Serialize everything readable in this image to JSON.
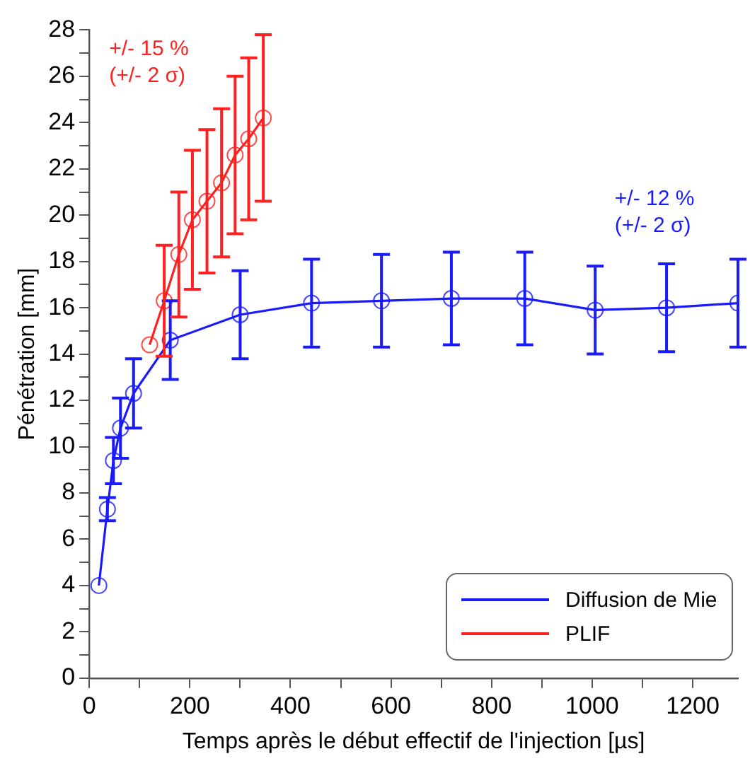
{
  "chart_data": {
    "type": "line",
    "xlabel": "Temps après le début effectif de l'injection [µs]",
    "ylabel": "Pénétration [mm]",
    "xlim": [
      0,
      1290
    ],
    "xticks": [
      0,
      {
        "value": 100,
        "label": null
      },
      200,
      {
        "value": 300,
        "label": null
      },
      400,
      {
        "value": 500,
        "label": null
      },
      600,
      {
        "value": 700,
        "label": null
      },
      800,
      {
        "value": 900,
        "label": null
      },
      1000,
      {
        "value": 1100,
        "label": null
      },
      1200
    ],
    "ylim": [
      0,
      28
    ],
    "yticks": [
      0,
      {
        "value": 1,
        "label": null
      },
      2,
      {
        "value": 3,
        "label": null
      },
      4,
      {
        "value": 5,
        "label": null
      },
      6,
      {
        "value": 7,
        "label": null
      },
      8,
      {
        "value": 9,
        "label": null
      },
      10,
      {
        "value": 11,
        "label": null
      },
      12,
      {
        "value": 13,
        "label": null
      },
      14,
      {
        "value": 15,
        "label": null
      },
      16,
      {
        "value": 17,
        "label": null
      },
      18,
      {
        "value": 19,
        "label": null
      },
      20,
      {
        "value": 21,
        "label": null
      },
      22,
      {
        "value": 23,
        "label": null
      },
      24,
      {
        "value": 25,
        "label": null
      },
      26,
      {
        "value": 27,
        "label": null
      },
      28
    ],
    "grid": false,
    "legend": "bottom right",
    "marker": "circle",
    "line_style": "solid",
    "series": [
      {
        "name": "Diffusion de Mie",
        "color": "#1a1aff",
        "x": [
          19,
          36,
          48,
          62,
          88,
          161,
          300,
          442,
          581,
          720,
          866,
          1006,
          1148,
          1290
        ],
        "values": [
          4.0,
          7.3,
          9.4,
          10.8,
          12.3,
          14.6,
          15.7,
          16.2,
          16.3,
          16.4,
          16.4,
          15.9,
          16.0,
          16.2
        ],
        "errors": [
          null,
          0.5,
          1.0,
          1.3,
          1.5,
          1.7,
          1.9,
          1.9,
          2.0,
          2.0,
          2.0,
          1.9,
          1.9,
          1.9
        ]
      },
      {
        "name": "PLIF",
        "color": "#ff2020",
        "x": [
          120,
          149,
          178,
          205,
          234,
          263,
          290,
          317,
          346
        ],
        "values": [
          14.4,
          16.3,
          18.3,
          19.8,
          20.6,
          21.4,
          22.6,
          23.3,
          24.2
        ],
        "errors": [
          null,
          2.4,
          2.7,
          3.0,
          3.1,
          3.2,
          3.4,
          3.5,
          3.6
        ]
      }
    ],
    "annotations": [
      "+/- 12 %\n(+/- 2 σ)",
      "+/- 15 %\n(+/- 2 σ)"
    ]
  }
}
